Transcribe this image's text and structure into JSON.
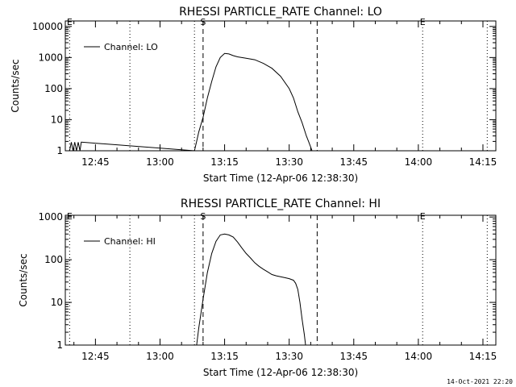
{
  "footer": {
    "timestamp": "14-Oct-2021 22:20"
  },
  "chart_data": [
    {
      "type": "line",
      "title": "RHESSI PARTICLE_RATE Channel: LO",
      "xlabel": "Start Time (12-Apr-06 12:38:30)",
      "ylabel": "Counts/sec",
      "yscale": "log",
      "ylim": [
        1,
        15000
      ],
      "xlim": [
        "12:38:30",
        "14:18"
      ],
      "xticks": [
        "12:45",
        "13:00",
        "13:15",
        "13:30",
        "13:45",
        "14:00",
        "14:15"
      ],
      "yticks": [
        "1",
        "10",
        "100",
        "1000",
        "10000"
      ],
      "legend": {
        "position": "top-left",
        "label": "Channel: LO"
      },
      "markers": [
        {
          "label": "E",
          "time": "12:39",
          "style": "dotted"
        },
        {
          "label": "",
          "time": "12:53",
          "style": "dotted"
        },
        {
          "label": "",
          "time": "13:08",
          "style": "dotted"
        },
        {
          "label": "S",
          "time": "13:10",
          "style": "dashed"
        },
        {
          "label": "",
          "time": "13:36.5",
          "style": "dashed"
        },
        {
          "label": "E",
          "time": "14:01",
          "style": "dotted"
        },
        {
          "label": "",
          "time": "14:16",
          "style": "dotted"
        }
      ],
      "series": [
        {
          "name": "Channel: LO",
          "x": [
            "12:39",
            "12:39.4",
            "12:39.8",
            "12:40.2",
            "12:40.6",
            "12:41",
            "12:41.4",
            "12:41.7",
            "13:08",
            "13:08.5",
            "13:09",
            "13:10",
            "13:11",
            "13:12",
            "13:13",
            "13:14",
            "13:15",
            "13:16",
            "13:17",
            "13:18",
            "13:20",
            "13:22",
            "13:24",
            "13:26",
            "13:28",
            "13:30",
            "13:31",
            "13:32",
            "13:33",
            "13:34",
            "13:34.5",
            "13:35",
            "13:35.3"
          ],
          "values": [
            1,
            1.9,
            1,
            1.9,
            1,
            1.9,
            1,
            1.9,
            1,
            2,
            4,
            12,
            50,
            170,
            500,
            1000,
            1350,
            1300,
            1150,
            1050,
            950,
            850,
            650,
            450,
            250,
            100,
            50,
            18,
            8,
            3,
            2,
            1.3,
            1
          ]
        }
      ]
    },
    {
      "type": "line",
      "title": "RHESSI PARTICLE_RATE Channel: HI",
      "xlabel": "Start Time (12-Apr-06 12:38:30)",
      "ylabel": "Counts/sec",
      "yscale": "log",
      "ylim": [
        1,
        1100
      ],
      "xlim": [
        "12:38:30",
        "14:18"
      ],
      "xticks": [
        "12:45",
        "13:00",
        "13:15",
        "13:30",
        "13:45",
        "14:00",
        "14:15"
      ],
      "yticks": [
        "1",
        "10",
        "100",
        "1000"
      ],
      "legend": {
        "position": "top-left",
        "label": "Channel: HI"
      },
      "markers": [
        {
          "label": "E",
          "time": "12:39",
          "style": "dotted"
        },
        {
          "label": "",
          "time": "12:53",
          "style": "dotted"
        },
        {
          "label": "",
          "time": "13:08",
          "style": "dotted"
        },
        {
          "label": "S",
          "time": "13:10",
          "style": "dashed"
        },
        {
          "label": "",
          "time": "13:36.5",
          "style": "dashed"
        },
        {
          "label": "E",
          "time": "14:01",
          "style": "dotted"
        },
        {
          "label": "",
          "time": "14:16",
          "style": "dotted"
        }
      ],
      "series": [
        {
          "name": "Channel: HI",
          "x": [
            "13:08.5",
            "13:09",
            "13:10",
            "13:11",
            "13:12",
            "13:13",
            "13:14",
            "13:15",
            "13:16",
            "13:17",
            "13:18",
            "13:19",
            "13:20",
            "13:21",
            "13:22",
            "13:23",
            "13:24",
            "13:25",
            "13:26",
            "13:27",
            "13:28",
            "13:29",
            "13:30",
            "13:31",
            "13:31.5",
            "13:32",
            "13:32.5",
            "13:33",
            "13:33.5",
            "13:33.8"
          ],
          "values": [
            1,
            2.5,
            12,
            50,
            140,
            270,
            380,
            400,
            380,
            340,
            260,
            190,
            140,
            110,
            85,
            70,
            60,
            52,
            45,
            42,
            40,
            38,
            36,
            33,
            28,
            20,
            10,
            4,
            1.8,
            1
          ]
        }
      ]
    }
  ]
}
